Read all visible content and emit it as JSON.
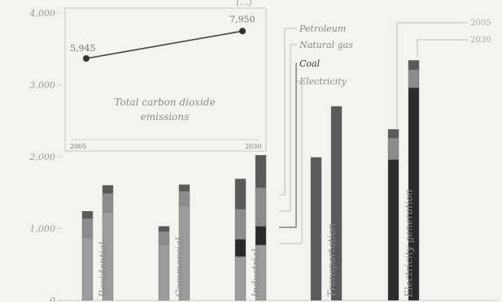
{
  "chart_data": {
    "type": "bar",
    "stacked": true,
    "title": "",
    "header_fragment": "(…)",
    "ylim": [
      0,
      4000
    ],
    "y_ticks": [
      "0",
      "1,000",
      "2,000",
      "3,000",
      "4,000"
    ],
    "categories": [
      "Residential",
      "Commercial",
      "Industrial",
      "Transportation",
      "Electricity generation"
    ],
    "years": [
      "2005",
      "2030"
    ],
    "series": [
      {
        "name": "Electricity",
        "color": "#9c9c9c",
        "values": [
          [
            880,
            1230
          ],
          [
            780,
            1320
          ],
          [
            610,
            770
          ],
          [
            0,
            0
          ],
          [
            0,
            0
          ]
        ]
      },
      {
        "name": "Coal",
        "color": "#2a2a2a",
        "values": [
          [
            0,
            0
          ],
          [
            0,
            0
          ],
          [
            240,
            260
          ],
          [
            0,
            0
          ],
          [
            1960,
            2960
          ]
        ]
      },
      {
        "name": "Natural gas",
        "color": "#8c8c8c",
        "values": [
          [
            260,
            260
          ],
          [
            180,
            200
          ],
          [
            420,
            540
          ],
          [
            0,
            0
          ],
          [
            300,
            250
          ]
        ]
      },
      {
        "name": "Petroleum",
        "color": "#5a5a5a",
        "values": [
          [
            100,
            110
          ],
          [
            70,
            90
          ],
          [
            420,
            450
          ],
          [
            1990,
            2700
          ],
          [
            120,
            130
          ]
        ]
      }
    ],
    "legend": [
      "Petroleum",
      "Natural gas",
      "Coal",
      "Electricity"
    ],
    "year_labels": [
      "2005",
      "2030"
    ],
    "inset": {
      "title_line1": "Total carbon dioxide",
      "title_line2": "emissions",
      "x": [
        "2005",
        "2030"
      ],
      "y": [
        5945,
        7950
      ],
      "value_labels": [
        "5,945",
        "7,950"
      ]
    },
    "grid": false,
    "legend_position": "top-right"
  }
}
